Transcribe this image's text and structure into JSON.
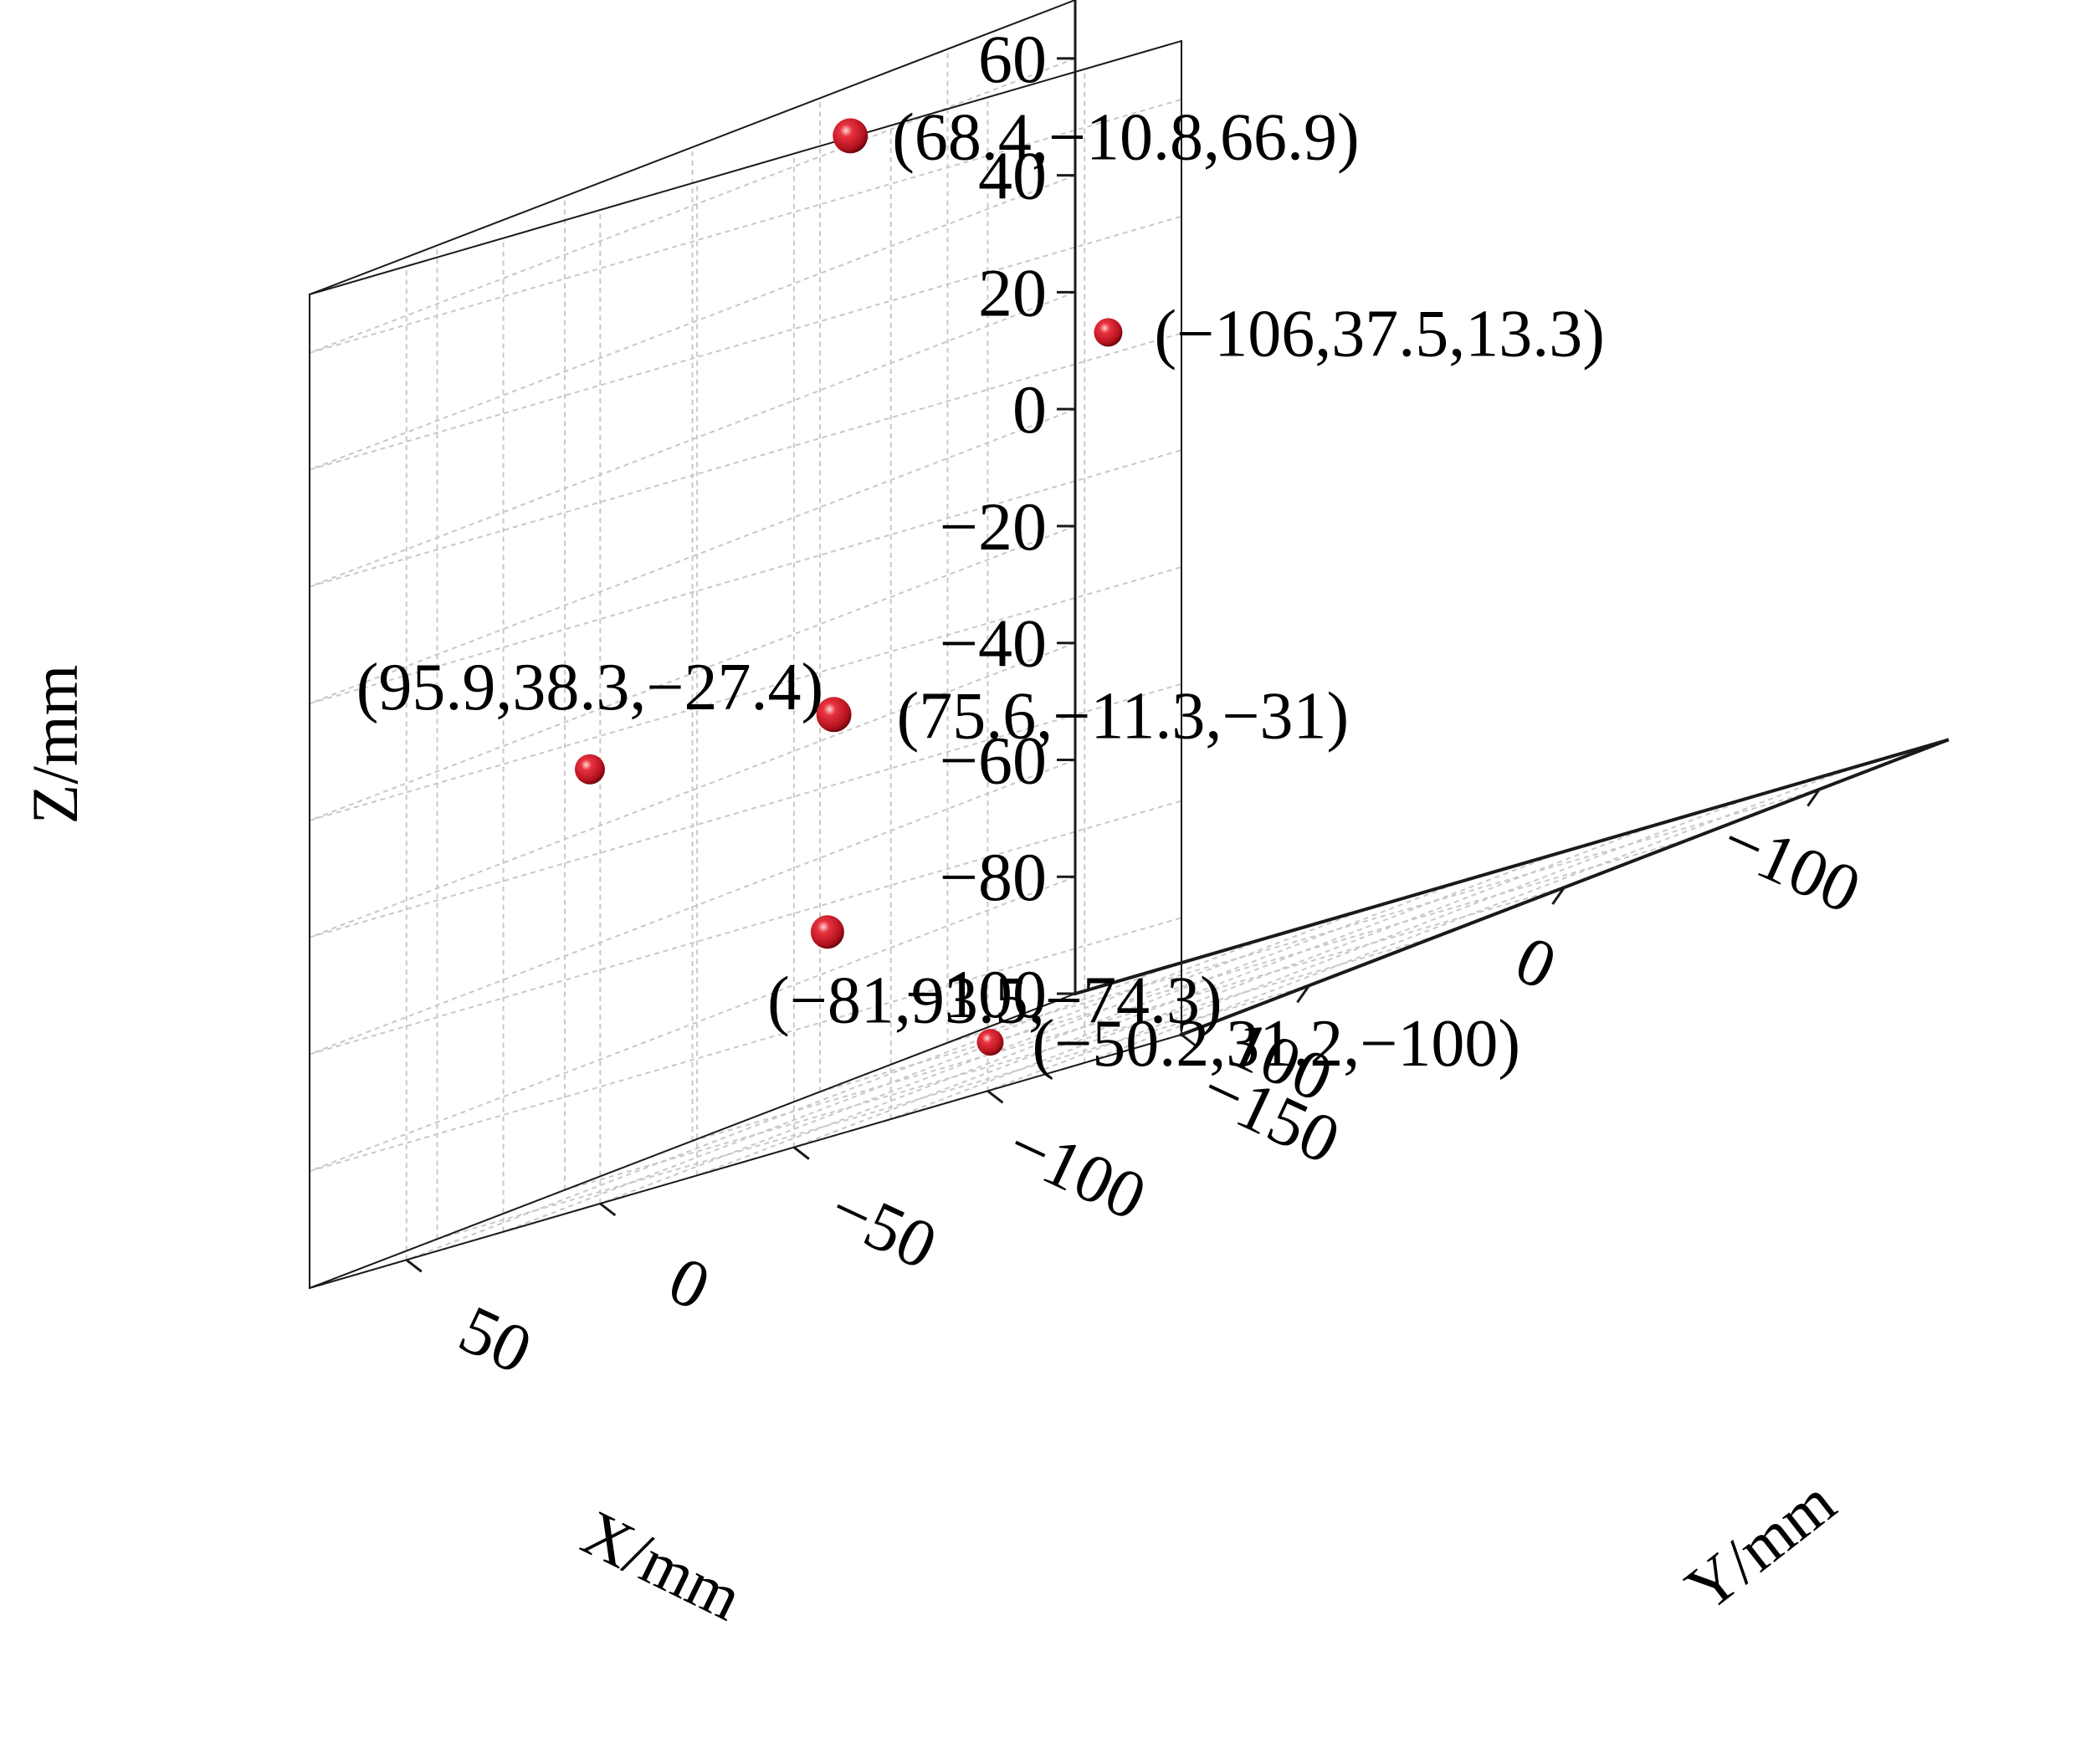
{
  "chart_data": {
    "type": "scatter",
    "projection": "3d",
    "xlabel": "X/mm",
    "ylabel": "Y/mm",
    "zlabel": "Z/mm",
    "xlim": [
      -150,
      150
    ],
    "ylim": [
      -150,
      75
    ],
    "zlim": [
      -100,
      70
    ],
    "x_ticks": [
      "−100",
      "0",
      "100"
    ],
    "x_tick_values": [
      -100,
      0,
      100
    ],
    "y_ticks": [
      "−150",
      "−100",
      "−50",
      "0",
      "50"
    ],
    "y_tick_values": [
      -150,
      -100,
      -50,
      0,
      50
    ],
    "z_ticks": [
      "60",
      "40",
      "20",
      "0",
      "−20",
      "−40",
      "−60",
      "−80",
      "−100"
    ],
    "z_tick_values": [
      60,
      40,
      20,
      0,
      -20,
      -40,
      -60,
      -80,
      -100
    ],
    "grid": true,
    "marker_color": "#cc1f2b",
    "points": [
      {
        "x": 68.4,
        "y": -10.8,
        "z": 66.9,
        "label": "(68.4,−10.8,66.9)"
      },
      {
        "x": -106,
        "y": 37.5,
        "z": 13.3,
        "label": "(−106,37.5,13.3)"
      },
      {
        "x": 95.9,
        "y": 38.3,
        "z": -27.4,
        "label": "(95.9,38.3,−27.4)"
      },
      {
        "x": 75.6,
        "y": -11.3,
        "z": -31,
        "label": "(75.6,−11.3,−31)"
      },
      {
        "x": -81,
        "y": 93.5,
        "z": -74.3,
        "label": "(−81,93.5,−74.3)"
      },
      {
        "x": -50.2,
        "y": 31.2,
        "z": -100,
        "label": "(−50.2,31.2,−100)"
      }
    ]
  }
}
